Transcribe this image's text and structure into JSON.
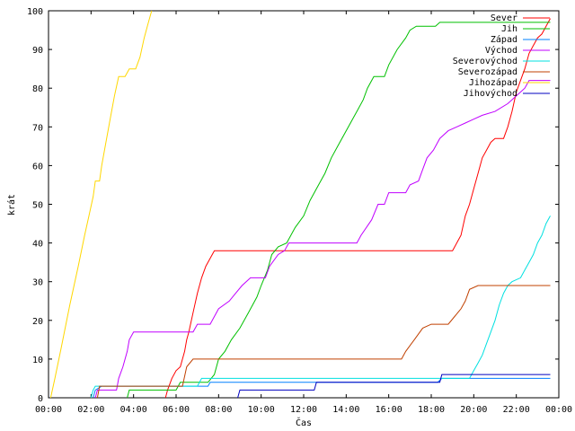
{
  "chart_data": {
    "type": "line",
    "title": "",
    "xlabel": "Čas",
    "ylabel": "krát",
    "xlim": [
      0,
      24
    ],
    "ylim": [
      0,
      100
    ],
    "grid": false,
    "legend_position": "top-right",
    "x_ticks": [
      "00:00",
      "02:00",
      "04:00",
      "06:00",
      "08:00",
      "10:00",
      "12:00",
      "14:00",
      "16:00",
      "18:00",
      "20:00",
      "22:00",
      "00:00"
    ],
    "y_ticks": [
      "0",
      "10",
      "20",
      "30",
      "40",
      "50",
      "60",
      "70",
      "80",
      "90",
      "100"
    ],
    "series": [
      {
        "name": "Sever",
        "color": "#ff0000",
        "points": [
          [
            5.5,
            0
          ],
          [
            5.6,
            2
          ],
          [
            5.8,
            5
          ],
          [
            6.0,
            7
          ],
          [
            6.2,
            8
          ],
          [
            6.4,
            12
          ],
          [
            6.5,
            15
          ],
          [
            6.6,
            17
          ],
          [
            6.8,
            22
          ],
          [
            7.0,
            27
          ],
          [
            7.2,
            31
          ],
          [
            7.4,
            34
          ],
          [
            7.6,
            36
          ],
          [
            7.8,
            38
          ],
          [
            12,
            38
          ],
          [
            16,
            38
          ],
          [
            19.0,
            38
          ],
          [
            19.2,
            40
          ],
          [
            19.4,
            42
          ],
          [
            19.6,
            47
          ],
          [
            19.8,
            50
          ],
          [
            20.0,
            54
          ],
          [
            20.2,
            58
          ],
          [
            20.4,
            62
          ],
          [
            20.6,
            64
          ],
          [
            20.8,
            66
          ],
          [
            21.0,
            67
          ],
          [
            21.4,
            67
          ],
          [
            21.6,
            70
          ],
          [
            21.8,
            74
          ],
          [
            22.0,
            79
          ],
          [
            22.2,
            82
          ],
          [
            22.4,
            85
          ],
          [
            22.6,
            89
          ],
          [
            22.8,
            91
          ],
          [
            23.0,
            93
          ],
          [
            23.2,
            94
          ],
          [
            23.4,
            96
          ],
          [
            23.6,
            98
          ]
        ]
      },
      {
        "name": "Jih",
        "color": "#00c000",
        "points": [
          [
            3.7,
            0
          ],
          [
            3.8,
            2
          ],
          [
            6.0,
            2
          ],
          [
            6.2,
            4
          ],
          [
            7.5,
            4
          ],
          [
            7.8,
            6
          ],
          [
            8.0,
            10
          ],
          [
            8.3,
            12
          ],
          [
            8.6,
            15
          ],
          [
            9.0,
            18
          ],
          [
            9.4,
            22
          ],
          [
            9.8,
            26
          ],
          [
            10.0,
            29
          ],
          [
            10.3,
            33
          ],
          [
            10.5,
            37
          ],
          [
            10.8,
            39
          ],
          [
            11.2,
            40
          ],
          [
            11.6,
            44
          ],
          [
            12.0,
            47
          ],
          [
            12.3,
            51
          ],
          [
            12.7,
            55
          ],
          [
            13.0,
            58
          ],
          [
            13.3,
            62
          ],
          [
            13.6,
            65
          ],
          [
            13.9,
            68
          ],
          [
            14.2,
            71
          ],
          [
            14.5,
            74
          ],
          [
            14.8,
            77
          ],
          [
            15.0,
            80
          ],
          [
            15.3,
            83
          ],
          [
            15.8,
            83
          ],
          [
            16.0,
            86
          ],
          [
            16.4,
            90
          ],
          [
            16.8,
            93
          ],
          [
            17.0,
            95
          ],
          [
            17.3,
            96
          ],
          [
            18.2,
            96
          ],
          [
            18.4,
            97
          ],
          [
            23.6,
            97
          ]
        ]
      },
      {
        "name": "Západ",
        "color": "#0080ff",
        "points": [
          [
            2.1,
            0
          ],
          [
            2.2,
            2
          ],
          [
            2.5,
            3
          ],
          [
            7.5,
            3
          ],
          [
            7.6,
            4
          ],
          [
            12,
            4
          ],
          [
            14,
            4
          ],
          [
            18.3,
            4
          ],
          [
            18.5,
            5
          ],
          [
            23.6,
            5
          ]
        ]
      },
      {
        "name": "Východ",
        "color": "#c000ff",
        "points": [
          [
            2.2,
            0
          ],
          [
            2.3,
            2
          ],
          [
            3.2,
            2
          ],
          [
            3.3,
            5
          ],
          [
            3.5,
            8
          ],
          [
            3.7,
            12
          ],
          [
            3.8,
            15
          ],
          [
            4.0,
            17
          ],
          [
            6.8,
            17
          ],
          [
            7.0,
            19
          ],
          [
            7.6,
            19
          ],
          [
            7.8,
            21
          ],
          [
            8.0,
            23
          ],
          [
            8.5,
            25
          ],
          [
            8.8,
            27
          ],
          [
            9.1,
            29
          ],
          [
            9.5,
            31
          ],
          [
            10.2,
            31
          ],
          [
            10.4,
            34
          ],
          [
            10.8,
            37
          ],
          [
            11.1,
            38
          ],
          [
            11.3,
            40
          ],
          [
            14.5,
            40
          ],
          [
            14.7,
            42
          ],
          [
            15.2,
            46
          ],
          [
            15.5,
            50
          ],
          [
            15.8,
            50
          ],
          [
            16.0,
            53
          ],
          [
            16.8,
            53
          ],
          [
            17.0,
            55
          ],
          [
            17.4,
            56
          ],
          [
            17.6,
            59
          ],
          [
            17.8,
            62
          ],
          [
            18.1,
            64
          ],
          [
            18.4,
            67
          ],
          [
            18.8,
            69
          ],
          [
            19.2,
            70
          ],
          [
            19.6,
            71
          ],
          [
            20.0,
            72
          ],
          [
            20.4,
            73
          ],
          [
            21.0,
            74
          ],
          [
            21.6,
            76
          ],
          [
            22.0,
            78
          ],
          [
            22.4,
            80
          ],
          [
            22.6,
            82
          ],
          [
            23.6,
            82
          ]
        ]
      },
      {
        "name": "Severovýchod",
        "color": "#00e0e0",
        "points": [
          [
            2.0,
            0
          ],
          [
            2.1,
            2
          ],
          [
            2.2,
            3
          ],
          [
            7.0,
            3
          ],
          [
            7.2,
            5
          ],
          [
            12,
            5
          ],
          [
            16,
            5
          ],
          [
            19.8,
            5
          ],
          [
            20.0,
            7
          ],
          [
            20.2,
            9
          ],
          [
            20.4,
            11
          ],
          [
            20.6,
            14
          ],
          [
            20.8,
            17
          ],
          [
            21.0,
            20
          ],
          [
            21.2,
            24
          ],
          [
            21.4,
            27
          ],
          [
            21.6,
            29
          ],
          [
            21.8,
            30
          ],
          [
            22.2,
            31
          ],
          [
            22.4,
            33
          ],
          [
            22.6,
            35
          ],
          [
            22.8,
            37
          ],
          [
            23.0,
            40
          ],
          [
            23.2,
            42
          ],
          [
            23.4,
            45
          ],
          [
            23.6,
            47
          ]
        ]
      },
      {
        "name": "Severozápad",
        "color": "#c04000",
        "points": [
          [
            2.3,
            0
          ],
          [
            2.4,
            3
          ],
          [
            6.3,
            3
          ],
          [
            6.5,
            8
          ],
          [
            6.8,
            10
          ],
          [
            12,
            10
          ],
          [
            16.6,
            10
          ],
          [
            16.8,
            12
          ],
          [
            17.2,
            15
          ],
          [
            17.6,
            18
          ],
          [
            18.0,
            19
          ],
          [
            18.8,
            19
          ],
          [
            19.1,
            21
          ],
          [
            19.4,
            23
          ],
          [
            19.6,
            25
          ],
          [
            19.8,
            28
          ],
          [
            20.2,
            29
          ],
          [
            23.6,
            29
          ]
        ]
      },
      {
        "name": "Jihozápad",
        "color": "#ffd700",
        "points": [
          [
            0.1,
            0
          ],
          [
            0.3,
            5
          ],
          [
            0.6,
            13
          ],
          [
            1.0,
            24
          ],
          [
            1.4,
            34
          ],
          [
            1.7,
            42
          ],
          [
            1.9,
            47
          ],
          [
            2.1,
            52
          ],
          [
            2.2,
            56
          ],
          [
            2.4,
            56
          ],
          [
            2.5,
            60
          ],
          [
            2.7,
            66
          ],
          [
            2.9,
            72
          ],
          [
            3.1,
            78
          ],
          [
            3.3,
            83
          ],
          [
            3.6,
            83
          ],
          [
            3.8,
            85
          ],
          [
            4.1,
            85
          ],
          [
            4.3,
            88
          ],
          [
            4.5,
            93
          ],
          [
            4.7,
            97
          ],
          [
            4.85,
            100
          ]
        ]
      },
      {
        "name": "Jihovýchod",
        "color": "#0000c0",
        "points": [
          [
            8.9,
            0
          ],
          [
            9.0,
            2
          ],
          [
            12.5,
            2
          ],
          [
            12.6,
            4
          ],
          [
            16,
            4
          ],
          [
            18.4,
            4
          ],
          [
            18.5,
            6
          ],
          [
            23.6,
            6
          ]
        ]
      }
    ]
  }
}
